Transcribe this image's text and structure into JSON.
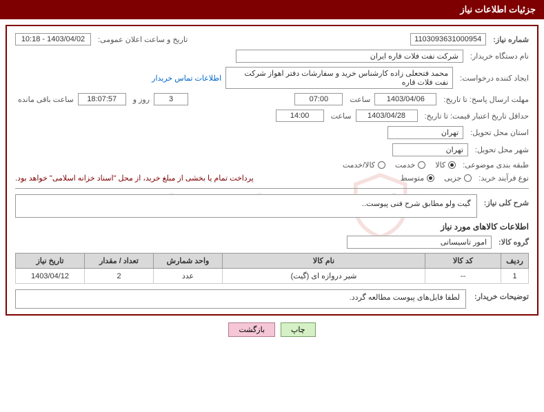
{
  "header": {
    "title": "جزئیات اطلاعات نیاز"
  },
  "labels": {
    "need_no": "شماره نیاز:",
    "announce_dt": "تاریخ و ساعت اعلان عمومی:",
    "buyer_org": "نام دستگاه خریدار:",
    "requester": "ایجاد کننده درخواست:",
    "contact_link": "اطلاعات تماس خریدار",
    "reply_deadline": "مهلت ارسال پاسخ: تا تاریخ:",
    "time_word": "ساعت",
    "day_and": "روز و",
    "remaining": "ساعت باقی مانده",
    "price_validity": "حداقل تاریخ اعتبار قیمت: تا تاریخ:",
    "delivery_province": "استان محل تحویل:",
    "delivery_city": "شهر محل تحویل:",
    "category": "طبقه بندی موضوعی:",
    "purchase_type": "نوع فرآیند خرید:",
    "payment_note": "پرداخت تمام یا بخشی از مبلغ خرید، از محل \"اسناد خزانه اسلامی\" خواهد بود.",
    "general_desc": "شرح کلی نیاز:",
    "items_info": "اطلاعات کالاهای مورد نیاز",
    "goods_group": "گروه کالا:",
    "buyer_notes": "توضیحات خریدار:"
  },
  "values": {
    "need_no": "1103093631000954",
    "announce_dt": "1403/04/02 - 10:18",
    "buyer_org": "شرکت نفت فلات قاره ایران",
    "requester": "محمد فتحعلی زاده کارشناس خرید و سفارشات دفتر اهواز شرکت نفت فلات قاره",
    "reply_date": "1403/04/06",
    "reply_time": "07:00",
    "days_left": "3",
    "time_left": "18:07:57",
    "validity_date": "1403/04/28",
    "validity_time": "14:00",
    "province": "تهران",
    "city": "تهران",
    "general_desc": "گیت ولو مطابق شرح فنی پیوست..",
    "goods_group": "امور تاسیساتی",
    "buyer_notes": "لطفا فایل‌های پیوست مطالعه گردد."
  },
  "radios": {
    "category": [
      {
        "label": "کالا",
        "selected": true
      },
      {
        "label": "خدمت",
        "selected": false
      },
      {
        "label": "کالا/خدمت",
        "selected": false
      }
    ],
    "purchase_type": [
      {
        "label": "جزیی",
        "selected": false
      },
      {
        "label": "متوسط",
        "selected": true
      }
    ]
  },
  "table": {
    "headers": {
      "row": "ردیف",
      "code": "کد کالا",
      "name": "نام کالا",
      "unit": "واحد شمارش",
      "qty": "تعداد / مقدار",
      "need_date": "تاریخ نیاز"
    },
    "rows": [
      {
        "row": "1",
        "code": "--",
        "name": "شیر دروازه ای (گیت)",
        "unit": "عدد",
        "qty": "2",
        "need_date": "1403/04/12"
      }
    ]
  },
  "buttons": {
    "print": "چاپ",
    "back": "بازگشت"
  },
  "colors": {
    "brand": "#7e0000",
    "header_bg": "#d9d9d9",
    "border": "#999999",
    "link": "#0066cc"
  }
}
